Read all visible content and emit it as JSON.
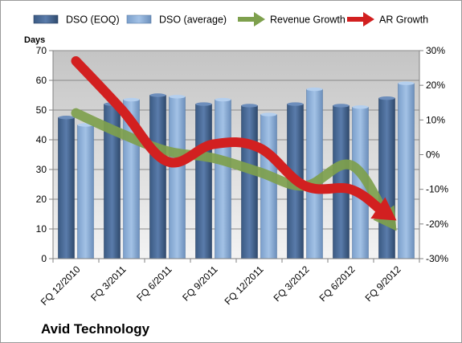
{
  "chart_data": {
    "type": "bar",
    "title": "Avid Technology",
    "ylabel": "Days",
    "ylim": [
      0,
      70
    ],
    "y_ticks": [
      0,
      10,
      20,
      30,
      40,
      50,
      60,
      70
    ],
    "y2lim": [
      -30,
      30
    ],
    "y2_ticks": [
      "-30%",
      "-20%",
      "-10%",
      "0%",
      "10%",
      "20%",
      "30%"
    ],
    "categories": [
      "FQ 12/2010",
      "FQ 3/2011",
      "FQ 6/2011",
      "FQ 9/2011",
      "FQ 12/2011",
      "FQ 3/2012",
      "FQ 6/2012",
      "FQ 9/2012"
    ],
    "legend_position": "top",
    "grid": true,
    "series": [
      {
        "name": "DSO (EOQ)",
        "type": "bar",
        "axis": "left",
        "color": "#4a6b95",
        "values": [
          47.5,
          52,
          55,
          52,
          51.5,
          52,
          51.5,
          54
        ]
      },
      {
        "name": "DSO (average)",
        "type": "bar",
        "axis": "left",
        "color": "#8aaed8",
        "values": [
          45,
          53.5,
          54.5,
          53.5,
          48.5,
          57,
          51,
          59
        ]
      },
      {
        "name": "Revenue Growth",
        "type": "line",
        "axis": "right",
        "unit": "%",
        "color": "#7ea04d",
        "values": [
          12,
          6,
          1,
          -1,
          -5,
          -9,
          -3,
          -22
        ]
      },
      {
        "name": "AR Growth",
        "type": "line",
        "axis": "right",
        "unit": "%",
        "color": "#d22020",
        "values": [
          27,
          13,
          -2,
          3,
          2,
          -9,
          -10,
          -19
        ]
      }
    ]
  }
}
